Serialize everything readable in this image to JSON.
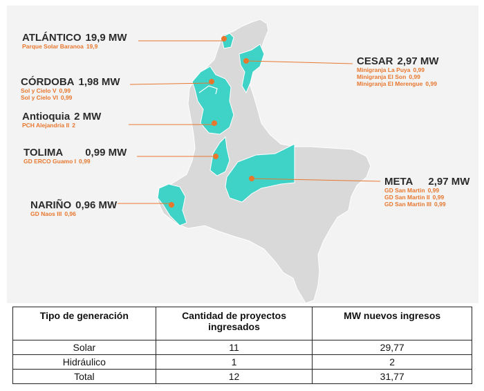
{
  "colors": {
    "map_fill": "#d9d9d9",
    "region_highlight": "#3fd3c8",
    "dot": "#e8772e",
    "leader_line": "#e8772e",
    "label_dark": "#2b2b2b",
    "label_orange": "#e8772e"
  },
  "callouts": {
    "atlantico": {
      "name": "ATLÁNTICO",
      "mw": "19,9 MW",
      "projects": [
        {
          "name": "Parque Solar Baranoa",
          "value": "19,9"
        }
      ]
    },
    "cesar": {
      "name": "CESAR",
      "mw": "2,97 MW",
      "projects": [
        {
          "name": "Minigranja La Puya",
          "value": "0,99"
        },
        {
          "name": "Minigranja El Son",
          "value": "0,99"
        },
        {
          "name": "Minigranja El Merengue",
          "value": "0,99"
        }
      ]
    },
    "cordoba": {
      "name": "CÓRDOBA",
      "mw": "1,98 MW",
      "projects": [
        {
          "name": "Sol y Cielo V",
          "value": "0,99"
        },
        {
          "name": "Sol y Cielo VI",
          "value": "0,99"
        }
      ]
    },
    "antioquia": {
      "name": "Antioquia",
      "mw": "2  MW",
      "projects": [
        {
          "name": "PCH Alejandría II",
          "value": "2"
        }
      ]
    },
    "tolima": {
      "name": "TOLIMA",
      "mw": "0,99 MW",
      "projects": [
        {
          "name": "GD ERCO Guamo I",
          "value": "0,99"
        }
      ]
    },
    "meta": {
      "name": "META",
      "mw": "2,97 MW",
      "projects": [
        {
          "name": "GD San Martin",
          "value": "0,99"
        },
        {
          "name": "GD San Martin II",
          "value": "0,99"
        },
        {
          "name": "GD San Martin III",
          "value": "0,99"
        }
      ]
    },
    "narino": {
      "name": "NARIÑO",
      "mw": "0,96 MW",
      "projects": [
        {
          "name": "GD Naos III",
          "value": "0,96"
        }
      ]
    }
  },
  "table": {
    "headers": [
      "Tipo de generación",
      "Cantidad de proyectos ingresados",
      "MW nuevos ingresos"
    ],
    "rows": [
      [
        "Solar",
        "11",
        "29,77"
      ],
      [
        "Hidráulico",
        "1",
        "2"
      ],
      [
        "Total",
        "12",
        "31,77"
      ]
    ]
  }
}
